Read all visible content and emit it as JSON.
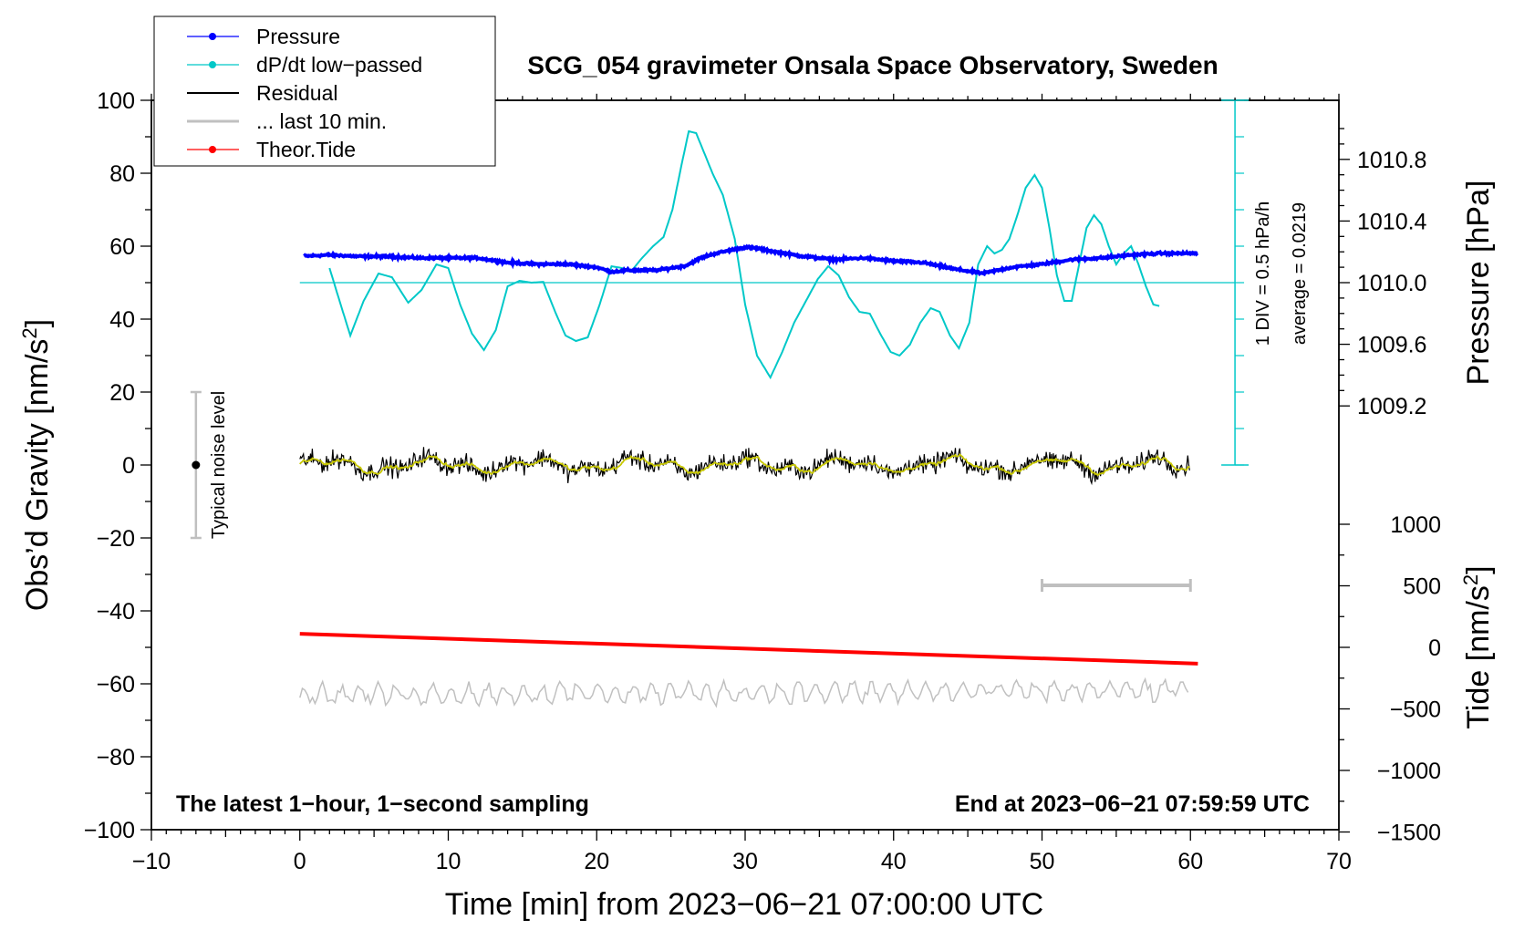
{
  "chart_data": {
    "type": "line",
    "title": "SCG_054 gravimeter Onsala Space Observatory, Sweden",
    "xlabel": "Time [min] from 2023−06−21 07:00:00 UTC",
    "ylabel_main": "Obs’d Gravity [nm/s",
    "ylabel_main_sup": "2",
    "ylabel_main_end": "]",
    "ylabel_pressure": "Pressure [hPa]",
    "ylabel_tide": "Tide [nm/s",
    "ylabel_tide_sup": "2",
    "ylabel_tide_end": "]",
    "xlim": [
      -10,
      70
    ],
    "ylim": [
      -100,
      100
    ],
    "x_ticks": [
      "−10",
      "0",
      "10",
      "20",
      "30",
      "40",
      "50",
      "60",
      "70"
    ],
    "y_ticks": [
      "−100",
      "−80",
      "−60",
      "−40",
      "−20",
      "0",
      "20",
      "40",
      "60",
      "80",
      "100"
    ],
    "pressure_axis": {
      "ticks": [
        "1009.2",
        "1009.6",
        "1010.0",
        "1010.4",
        "1010.8"
      ],
      "tick_values": [
        1009.2,
        1009.6,
        1010.0,
        1010.4,
        1010.8
      ]
    },
    "tide_axis": {
      "ticks": [
        "−1500",
        "−1000",
        "−500",
        "0",
        "500",
        "1000"
      ],
      "tick_values": [
        -1500,
        -1000,
        -500,
        0,
        500,
        1000
      ]
    },
    "dpdt_scale_label": "1 DIV = 0.5 hPa/h",
    "dpdt_average_label": "average = 0.0219",
    "noise_label": "Typical noise level",
    "footer_left": "The latest 1−hour, 1−second sampling",
    "footer_right": "End at 2023−06−21 07:59:59 UTC",
    "legend": [
      {
        "label": "Pressure",
        "color": "#0000ff",
        "marker": true
      },
      {
        "label": "dP/dt low−passed",
        "color": "#00c8c8",
        "marker": true
      },
      {
        "label": "Residual",
        "color": "#000000",
        "marker": false
      },
      {
        "label": "... last 10 min.",
        "color": "#c0c0c0",
        "marker": false
      },
      {
        "label": "Theor.Tide",
        "color": "#ff0000",
        "marker": true
      }
    ],
    "series": [
      {
        "name": "Pressure",
        "color": "#0000ff",
        "axis": "hPa",
        "x": [
          0,
          2,
          4,
          6,
          8,
          10,
          12,
          14,
          16,
          18,
          20,
          21,
          22,
          24,
          26,
          27,
          28,
          29,
          30,
          31,
          32,
          34,
          36,
          38,
          40,
          42,
          44,
          46,
          47,
          48,
          50,
          52,
          54,
          56,
          58,
          60
        ],
        "values": [
          1010.17,
          1010.18,
          1010.17,
          1010.17,
          1010.16,
          1010.16,
          1010.16,
          1010.13,
          1010.12,
          1010.12,
          1010.1,
          1010.07,
          1010.08,
          1010.08,
          1010.11,
          1010.16,
          1010.19,
          1010.21,
          1010.23,
          1010.22,
          1010.2,
          1010.17,
          1010.15,
          1010.16,
          1010.14,
          1010.13,
          1010.09,
          1010.06,
          1010.08,
          1010.1,
          1010.12,
          1010.15,
          1010.16,
          1010.18,
          1010.19,
          1010.19
        ]
      },
      {
        "name": "dP/dt low−passed",
        "color": "#00c8c8",
        "axis": "gravity",
        "x": [
          2,
          2.6,
          3.4,
          4.3,
          5.3,
          6.2,
          7.3,
          8.2,
          9.2,
          10.0,
          10.8,
          11.6,
          12.4,
          13.2,
          14.0,
          14.8,
          15.6,
          16.4,
          17.2,
          17.9,
          18.6,
          19.4,
          20.2,
          21.0,
          21.7,
          22.3,
          23.0,
          23.8,
          24.5,
          25.1,
          25.7,
          26.2,
          26.7,
          27.2,
          27.8,
          28.5,
          29.3,
          30.0,
          30.8,
          31.7,
          32.5,
          33.3,
          34.1,
          34.9,
          35.6,
          36.3,
          37.0,
          37.7,
          38.4,
          39.1,
          39.8,
          40.4,
          41.1,
          41.8,
          42.5,
          43.1,
          43.8,
          44.4,
          45.1,
          45.7,
          46.3,
          46.8,
          47.3,
          47.8,
          48.3,
          48.9,
          49.5,
          50.0,
          50.5,
          51.0,
          51.5,
          52.0,
          52.5,
          53.0,
          53.5,
          54.0,
          54.5,
          55.0,
          55.5,
          56.0,
          56.5,
          57.0,
          57.5,
          58.0
        ],
        "values": [
          54,
          46,
          35.5,
          45,
          52.5,
          51.5,
          44.5,
          48,
          55,
          54,
          44,
          36,
          31.5,
          37,
          49,
          50.5,
          50,
          50.2,
          42,
          35.5,
          34,
          35,
          44,
          54.5,
          54,
          53,
          56.5,
          60,
          62.5,
          70,
          82,
          91.5,
          91,
          86,
          80,
          74,
          62,
          44,
          30,
          24,
          31,
          39,
          45,
          51,
          54.5,
          52,
          46,
          42,
          41.5,
          36,
          31,
          30,
          33,
          39,
          43,
          42,
          35.5,
          32,
          39,
          55,
          60,
          58,
          59,
          62,
          68,
          76,
          79.5,
          76,
          65,
          52,
          45,
          45,
          55,
          65,
          68.5,
          66,
          60,
          55,
          58,
          60,
          55,
          49,
          44,
          43.5
        ]
      },
      {
        "name": "Residual",
        "color": "#000000",
        "axis": "gravity",
        "x": [
          0,
          60
        ],
        "values": [
          0,
          0
        ],
        "noise_amplitude": 3
      },
      {
        "name": "Residual (smoothed)",
        "color": "#c8c800",
        "axis": "gravity",
        "x": [
          0,
          60
        ],
        "values": [
          0,
          0
        ],
        "noise_amplitude": 1
      },
      {
        "name": "... last 10 min.",
        "color": "#c0c0c0",
        "axis": "gravity",
        "x": [
          0,
          60
        ],
        "values": [
          -63,
          -62
        ],
        "noise_amplitude": 3
      },
      {
        "name": "Theor.Tide",
        "color": "#ff0000",
        "axis": "tide",
        "x": [
          0,
          60
        ],
        "values": [
          110,
          -130
        ]
      }
    ],
    "dpdt_baseline": 50,
    "noise_bar": {
      "x": -7,
      "center": 0,
      "low": -20,
      "high": 20
    },
    "ten_min_bar": {
      "x_start": 50,
      "x_end": 60,
      "y": -33
    }
  }
}
